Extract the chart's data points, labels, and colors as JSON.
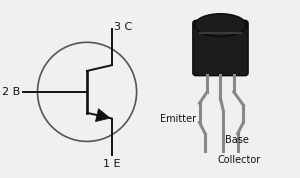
{
  "background_color": "#f0f0f0",
  "circle_color": "#555555",
  "circle_linewidth": 1.2,
  "line_color": "#111111",
  "label_2B": "2 B",
  "label_3C": "3 C",
  "label_1E": "1 E",
  "label_emitter": "Emitter",
  "label_base": "Base",
  "label_collector": "Collector",
  "label_fontsize": 7,
  "pin_label_fontsize": 8
}
